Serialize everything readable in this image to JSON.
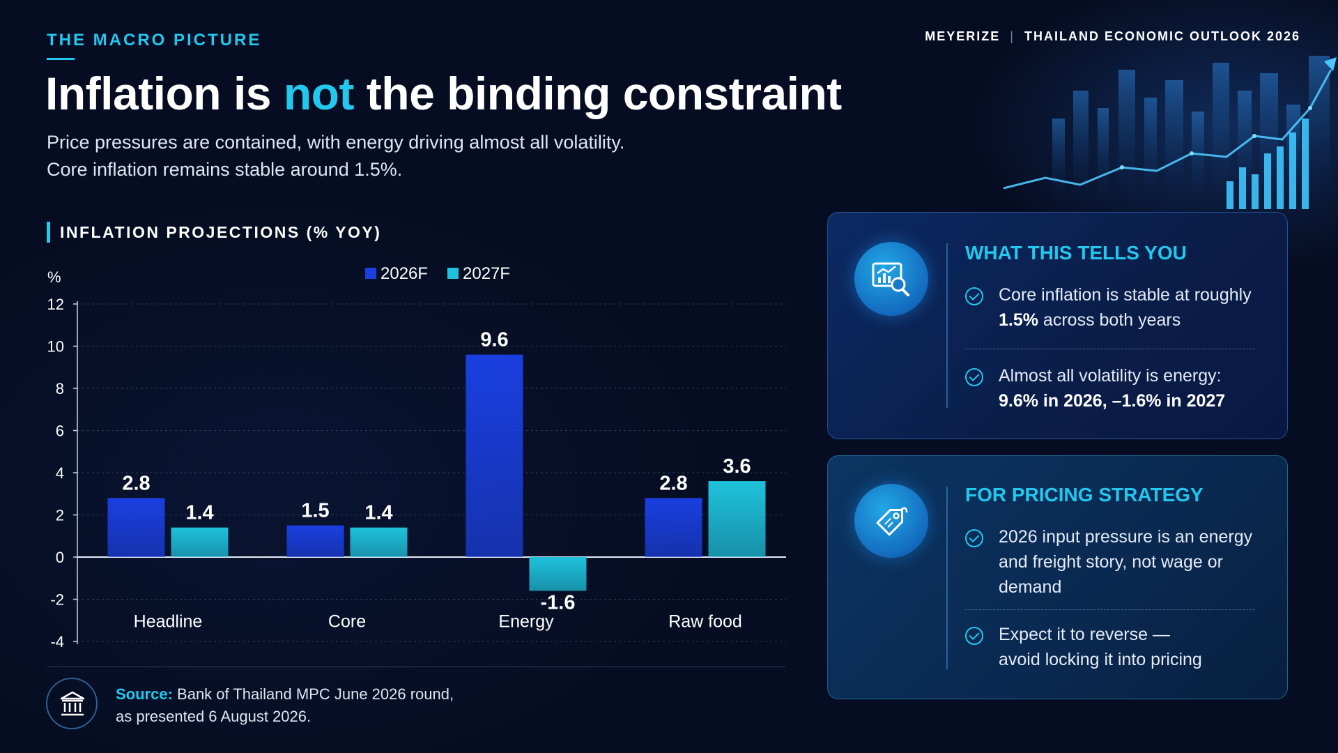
{
  "header": {
    "eyebrow": "THE MACRO PICTURE",
    "brand": "MEYERIZE",
    "brand_separator": "|",
    "report": "THAILAND ECONOMIC OUTLOOK 2026"
  },
  "title": {
    "before": "Inflation is ",
    "highlight": "not",
    "after": " the binding constraint"
  },
  "subtitle": {
    "line1": "Price pressures are contained, with energy driving almost all volatility.",
    "line2": "Core inflation remains stable around 1.5%."
  },
  "chart_section_title": "INFLATION PROJECTIONS (% YOY)",
  "chart_data": {
    "type": "bar",
    "categories": [
      "Headline",
      "Core",
      "Energy",
      "Raw food"
    ],
    "series": [
      {
        "name": "2026F",
        "values": [
          2.8,
          1.5,
          9.6,
          2.8
        ],
        "color": "#1a3fe0"
      },
      {
        "name": "2027F",
        "values": [
          1.4,
          1.4,
          -1.6,
          3.6
        ],
        "color": "#1fc2dc"
      }
    ],
    "ylabel": "%",
    "ylim": [
      -4,
      12
    ],
    "yticks": [
      12,
      10,
      8,
      6,
      4,
      2,
      0,
      -2,
      -4
    ],
    "grid": true,
    "legend": "top-center",
    "data_labels": true
  },
  "panels": [
    {
      "title": "WHAT THIS TELLS YOU",
      "icon": "chart-analysis-icon",
      "bullets": [
        {
          "pre": "Core inflation is stable at roughly ",
          "bold": "1.5%",
          "post": " across both years"
        },
        {
          "pre": "Almost all volatility is energy: ",
          "bold": "9.6% in 2026, –1.6% in 2027",
          "post": ""
        }
      ]
    },
    {
      "title": "FOR PRICING STRATEGY",
      "icon": "price-tag-icon",
      "bullets": [
        {
          "pre": "2026 input pressure is an energy and freight story, not wage or demand",
          "bold": "",
          "post": ""
        },
        {
          "pre": "Expect it to reverse — avoid locking it into pricing",
          "bold": "",
          "post": ""
        }
      ]
    }
  ],
  "source": {
    "label": "Source:",
    "line1": " Bank of Thailand MPC June 2026 round,",
    "line2": "as presented 6 August 2026."
  },
  "colors": {
    "background": "#060d22",
    "accent": "#22c8ee",
    "bar_2026": "#1a3fe0",
    "bar_2027": "#1fc2dc"
  }
}
